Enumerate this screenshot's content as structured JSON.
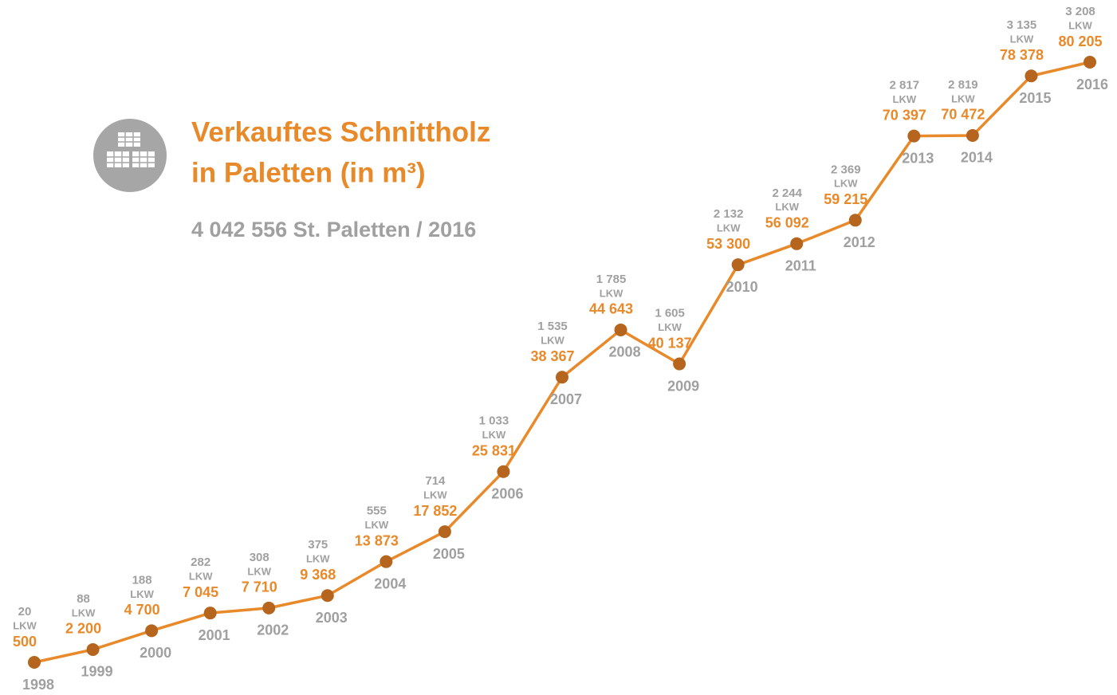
{
  "chart_data": {
    "type": "line",
    "title": [
      "Verkauftes Schnittholz",
      "in Paletten (in m³)"
    ],
    "subtitle": "4 042 556 St. Paletten / 2016",
    "categories": [
      "1998",
      "1999",
      "2000",
      "2001",
      "2002",
      "2003",
      "2004",
      "2005",
      "2006",
      "2007",
      "2008",
      "2009",
      "2010",
      "2011",
      "2012",
      "2013",
      "2014",
      "2015",
      "2016"
    ],
    "series": [
      {
        "color": "#e8892a",
        "marker_color": "#b5651d",
        "values": [
          500,
          2200,
          4700,
          7045,
          7710,
          9368,
          13873,
          17852,
          25831,
          38367,
          44643,
          40137,
          53300,
          56092,
          59215,
          70397,
          70472,
          78378,
          80205
        ],
        "value_labels": [
          "500",
          "2 200",
          "4 700",
          "7 045",
          "7 710",
          "9 368",
          "13 873",
          "17 852",
          "25 831",
          "38 367",
          "44 643",
          "40 137",
          "53 300",
          "56 092",
          "59 215",
          "70 397",
          "70 472",
          "78 378",
          "80 205"
        ]
      },
      {
        "color": "#a0a0a0",
        "unit_label": "LKW",
        "values": [
          20,
          88,
          188,
          282,
          308,
          375,
          555,
          714,
          1033,
          1535,
          1785,
          1605,
          2132,
          2244,
          2369,
          2817,
          2819,
          3135,
          3208
        ],
        "value_labels": [
          "20",
          "88",
          "188",
          "282",
          "308",
          "375",
          "555",
          "714",
          "1 033",
          "1 535",
          "1 785",
          "1 605",
          "2 132",
          "2 244",
          "2 369",
          "2 817",
          "2 819",
          "3 135",
          "3 208"
        ]
      }
    ]
  }
}
